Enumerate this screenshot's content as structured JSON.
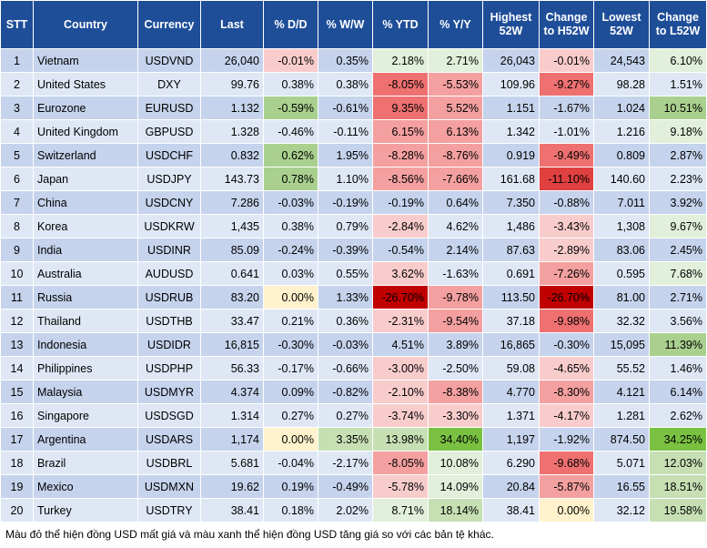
{
  "table": {
    "headers": [
      "STT",
      "Country",
      "Currency",
      "Last",
      "% D/D",
      "% W/W",
      "% YTD",
      "% Y/Y",
      "Highest 52W",
      "Change to H52W",
      "Lowest 52W",
      "Change to L52W"
    ],
    "rows": [
      [
        "1",
        "Vietnam",
        "USDVND",
        "26,040",
        "-0.01%",
        "0.35%",
        "2.18%",
        "2.71%",
        "26,043",
        "-0.01%",
        "24,543",
        "6.10%"
      ],
      [
        "2",
        "United States",
        "DXY",
        "99.76",
        "0.38%",
        "0.38%",
        "-8.05%",
        "-5.53%",
        "109.96",
        "-9.27%",
        "98.28",
        "1.51%"
      ],
      [
        "3",
        "Eurozone",
        "EURUSD",
        "1.132",
        "-0.59%",
        "-0.61%",
        "9.35%",
        "5.52%",
        "1.151",
        "-1.67%",
        "1.024",
        "10.51%"
      ],
      [
        "4",
        "United Kingdom",
        "GBPUSD",
        "1.328",
        "-0.46%",
        "-0.11%",
        "6.15%",
        "6.13%",
        "1.342",
        "-1.01%",
        "1.216",
        "9.18%"
      ],
      [
        "5",
        "Switzerland",
        "USDCHF",
        "0.832",
        "0.62%",
        "1.95%",
        "-8.28%",
        "-8.76%",
        "0.919",
        "-9.49%",
        "0.809",
        "2.87%"
      ],
      [
        "6",
        "Japan",
        "USDJPY",
        "143.73",
        "0.78%",
        "1.10%",
        "-8.56%",
        "-7.66%",
        "161.68",
        "-11.10%",
        "140.60",
        "2.23%"
      ],
      [
        "7",
        "China",
        "USDCNY",
        "7.286",
        "-0.03%",
        "-0.19%",
        "-0.19%",
        "0.64%",
        "7.350",
        "-0.88%",
        "7.011",
        "3.92%"
      ],
      [
        "8",
        "Korea",
        "USDKRW",
        "1,435",
        "0.38%",
        "0.79%",
        "-2.84%",
        "4.62%",
        "1,486",
        "-3.43%",
        "1,308",
        "9.67%"
      ],
      [
        "9",
        "India",
        "USDINR",
        "85.09",
        "-0.24%",
        "-0.39%",
        "-0.54%",
        "2.14%",
        "87.63",
        "-2.89%",
        "83.06",
        "2.45%"
      ],
      [
        "10",
        "Australia",
        "AUDUSD",
        "0.641",
        "0.03%",
        "0.55%",
        "3.62%",
        "-1.63%",
        "0.691",
        "-7.26%",
        "0.595",
        "7.68%"
      ],
      [
        "11",
        "Russia",
        "USDRUB",
        "83.20",
        "0.00%",
        "1.33%",
        "-26.70%",
        "-9.78%",
        "113.50",
        "-26.70%",
        "81.00",
        "2.71%"
      ],
      [
        "12",
        "Thailand",
        "USDTHB",
        "33.47",
        "0.21%",
        "0.36%",
        "-2.31%",
        "-9.54%",
        "37.18",
        "-9.98%",
        "32.32",
        "3.56%"
      ],
      [
        "13",
        "Indonesia",
        "USDIDR",
        "16,815",
        "-0.30%",
        "-0.03%",
        "4.51%",
        "3.89%",
        "16,865",
        "-0.30%",
        "15,095",
        "11.39%"
      ],
      [
        "14",
        "Philippines",
        "USDPHP",
        "56.33",
        "-0.17%",
        "-0.66%",
        "-3.00%",
        "-2.50%",
        "59.08",
        "-4.65%",
        "55.52",
        "1.46%"
      ],
      [
        "15",
        "Malaysia",
        "USDMYR",
        "4.374",
        "0.09%",
        "-0.82%",
        "-2.10%",
        "-8.38%",
        "4.770",
        "-8.30%",
        "4.121",
        "6.14%"
      ],
      [
        "16",
        "Singapore",
        "USDSGD",
        "1.314",
        "0.27%",
        "0.27%",
        "-3.74%",
        "-3.30%",
        "1.371",
        "-4.17%",
        "1.281",
        "2.62%"
      ],
      [
        "17",
        "Argentina",
        "USDARS",
        "1,174",
        "0.00%",
        "3.35%",
        "13.98%",
        "34.40%",
        "1,197",
        "-1.92%",
        "874.50",
        "34.25%"
      ],
      [
        "18",
        "Brazil",
        "USDBRL",
        "5.681",
        "-0.04%",
        "-2.17%",
        "-8.05%",
        "10.08%",
        "6.290",
        "-9.68%",
        "5.071",
        "12.03%"
      ],
      [
        "19",
        "Mexico",
        "USDMXN",
        "19.62",
        "0.19%",
        "-0.49%",
        "-5.78%",
        "14.09%",
        "20.84",
        "-5.87%",
        "16.55",
        "18.51%"
      ],
      [
        "20",
        "Turkey",
        "USDTRY",
        "38.41",
        "0.18%",
        "2.02%",
        "8.71%",
        "18.14%",
        "38.41",
        "0.00%",
        "32.12",
        "19.58%"
      ]
    ],
    "colored_columns": [
      4,
      5,
      6,
      7,
      9,
      11
    ],
    "fills": [
      [
        "#f9cccc",
        null,
        "#e2efda",
        "#e2efda",
        "#f9cccc",
        "#e2efda"
      ],
      [
        null,
        null,
        "#ee7070",
        "#f4a0a0",
        "#ee7070",
        null
      ],
      [
        "#a9d08e",
        null,
        "#ee7070",
        "#f4a0a0",
        null,
        "#a9d08e"
      ],
      [
        null,
        null,
        "#f4a0a0",
        "#f4a0a0",
        null,
        "#e2efda"
      ],
      [
        "#a9d08e",
        null,
        "#f4a0a0",
        "#f4a0a0",
        "#ee7070",
        null
      ],
      [
        "#a9d08e",
        null,
        "#f4a0a0",
        "#f4a0a0",
        "#e04040",
        null
      ],
      [
        null,
        null,
        null,
        null,
        null,
        null
      ],
      [
        null,
        null,
        "#f9cccc",
        null,
        "#f9cccc",
        "#e2efda"
      ],
      [
        null,
        null,
        null,
        null,
        "#f9cccc",
        null
      ],
      [
        null,
        null,
        "#f9cccc",
        null,
        "#f4a0a0",
        "#e2efda"
      ],
      [
        "#fff2cc",
        null,
        "#c00000",
        "#f4a0a0",
        "#c00000",
        null
      ],
      [
        null,
        null,
        "#f9cccc",
        "#f4a0a0",
        "#ee7070",
        null
      ],
      [
        null,
        null,
        null,
        null,
        null,
        "#a9d08e"
      ],
      [
        null,
        null,
        "#f9cccc",
        null,
        "#f9cccc",
        null
      ],
      [
        null,
        null,
        "#f9cccc",
        "#f4a0a0",
        "#f4a0a0",
        null
      ],
      [
        null,
        null,
        "#f9cccc",
        "#f9cccc",
        "#f9cccc",
        null
      ],
      [
        "#fff2cc",
        "#c6e0b4",
        "#c6e0b4",
        "#7ac142",
        null,
        "#7ac142"
      ],
      [
        null,
        null,
        "#f4a0a0",
        "#e2efda",
        "#ee7070",
        "#c6e0b4"
      ],
      [
        null,
        null,
        "#f9cccc",
        "#e2efda",
        "#f4a0a0",
        "#c6e0b4"
      ],
      [
        null,
        null,
        "#e2efda",
        "#c6e0b4",
        "#fff2cc",
        "#c6e0b4"
      ]
    ]
  },
  "note": "Màu đỏ thể hiện đồng USD mất giá và màu xanh thể hiện đồng USD tăng giá so với các bản tệ khác."
}
